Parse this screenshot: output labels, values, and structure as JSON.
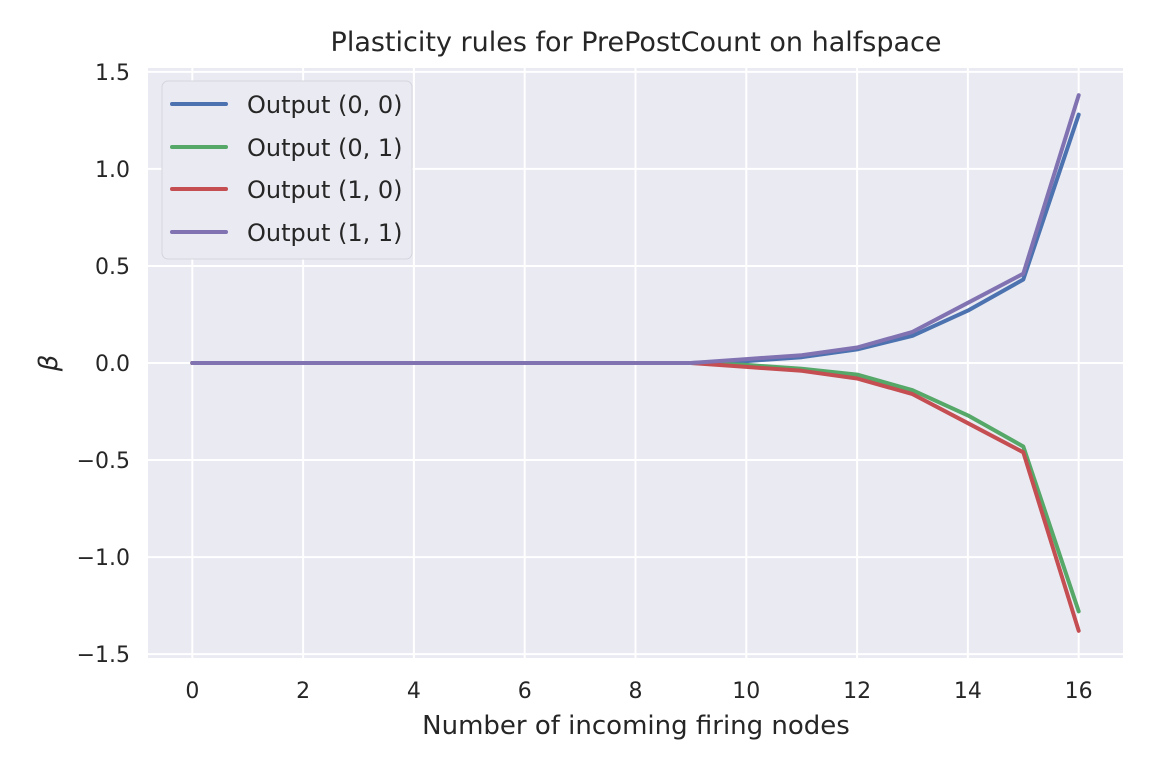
{
  "chart_data": {
    "type": "line",
    "title": "Plasticity rules for PrePostCount on halfspace",
    "xlabel": "Number of incoming firing nodes",
    "ylabel": "β",
    "xlim": [
      -0.8,
      16.8
    ],
    "ylim": [
      -1.52,
      1.52
    ],
    "x_ticks": [
      0,
      2,
      4,
      6,
      8,
      10,
      12,
      14,
      16
    ],
    "x_tick_labels": [
      "0",
      "2",
      "4",
      "6",
      "8",
      "10",
      "12",
      "14",
      "16"
    ],
    "y_ticks": [
      -1.5,
      -1.0,
      -0.5,
      0.0,
      0.5,
      1.0,
      1.5
    ],
    "y_tick_labels": [
      "−1.5",
      "−1.0",
      "−0.5",
      "0.0",
      "0.5",
      "1.0",
      "1.5"
    ],
    "grid": true,
    "legend_position": "upper-left",
    "background_color": "#EAEAF2",
    "grid_color": "#FFFFFF",
    "x": [
      0,
      1,
      2,
      3,
      4,
      5,
      6,
      7,
      8,
      9,
      10,
      11,
      12,
      13,
      14,
      15,
      16
    ],
    "series": [
      {
        "name": "Output (0, 0)",
        "color": "#4C72B0",
        "values": [
          0,
          0,
          0,
          0,
          0,
          0,
          0,
          0,
          0,
          0,
          0.01,
          0.03,
          0.07,
          0.14,
          0.27,
          0.43,
          1.28
        ]
      },
      {
        "name": "Output (0, 1)",
        "color": "#55A868",
        "values": [
          0,
          0,
          0,
          0,
          0,
          0,
          0,
          0,
          0,
          0,
          -0.01,
          -0.03,
          -0.06,
          -0.14,
          -0.27,
          -0.43,
          -1.28
        ]
      },
      {
        "name": "Output (1, 0)",
        "color": "#C44E52",
        "values": [
          0,
          0,
          0,
          0,
          0,
          0,
          0,
          0,
          0,
          0,
          -0.02,
          -0.04,
          -0.08,
          -0.16,
          -0.31,
          -0.46,
          -1.38
        ]
      },
      {
        "name": "Output (1, 1)",
        "color": "#8172B2",
        "values": [
          0,
          0,
          0,
          0,
          0,
          0,
          0,
          0,
          0,
          0,
          0.02,
          0.04,
          0.08,
          0.16,
          0.31,
          0.46,
          1.38
        ]
      }
    ]
  }
}
